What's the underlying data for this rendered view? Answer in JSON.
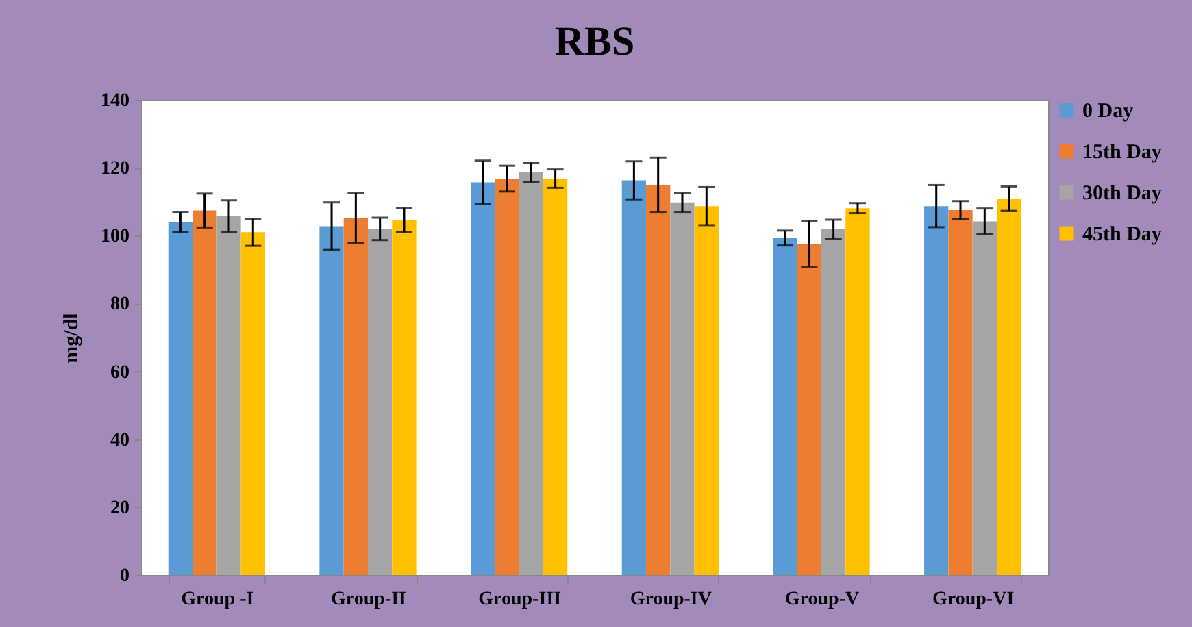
{
  "chart_data": {
    "type": "bar",
    "title": "RBS",
    "ylabel": "mg/dl",
    "categories": [
      "Group -I",
      "Group-II",
      "Group-III",
      "Group-IV",
      "Group-V",
      "Group-VI"
    ],
    "series": [
      {
        "name": "0 Day",
        "color": "#5b9bd5",
        "values": [
          104,
          102.8,
          115.7,
          116.3,
          99.3,
          108.7
        ],
        "errors": [
          3,
          7,
          6.4,
          5.6,
          2.2,
          6.2
        ]
      },
      {
        "name": "15th Day",
        "color": "#ed7d31",
        "values": [
          107.4,
          105.2,
          116.8,
          115,
          97.6,
          107.5
        ],
        "errors": [
          5,
          7.4,
          3.8,
          8,
          6.8,
          2.7
        ]
      },
      {
        "name": "30th Day",
        "color": "#a5a5a5",
        "values": [
          105.7,
          102,
          118.6,
          109.8,
          101.9,
          104.2
        ],
        "errors": [
          4.7,
          3.3,
          2.9,
          2.8,
          2.8,
          3.8
        ]
      },
      {
        "name": "45th Day",
        "color": "#ffc000",
        "values": [
          101,
          104.6,
          116.8,
          108.7,
          108.1,
          110.9
        ],
        "errors": [
          4,
          3.6,
          2.7,
          5.6,
          1.5,
          3.6
        ]
      }
    ],
    "ylim": [
      0,
      140
    ],
    "yticks": [
      0,
      20,
      40,
      60,
      80,
      100,
      120,
      140
    ],
    "grid": false,
    "legend": "right"
  }
}
